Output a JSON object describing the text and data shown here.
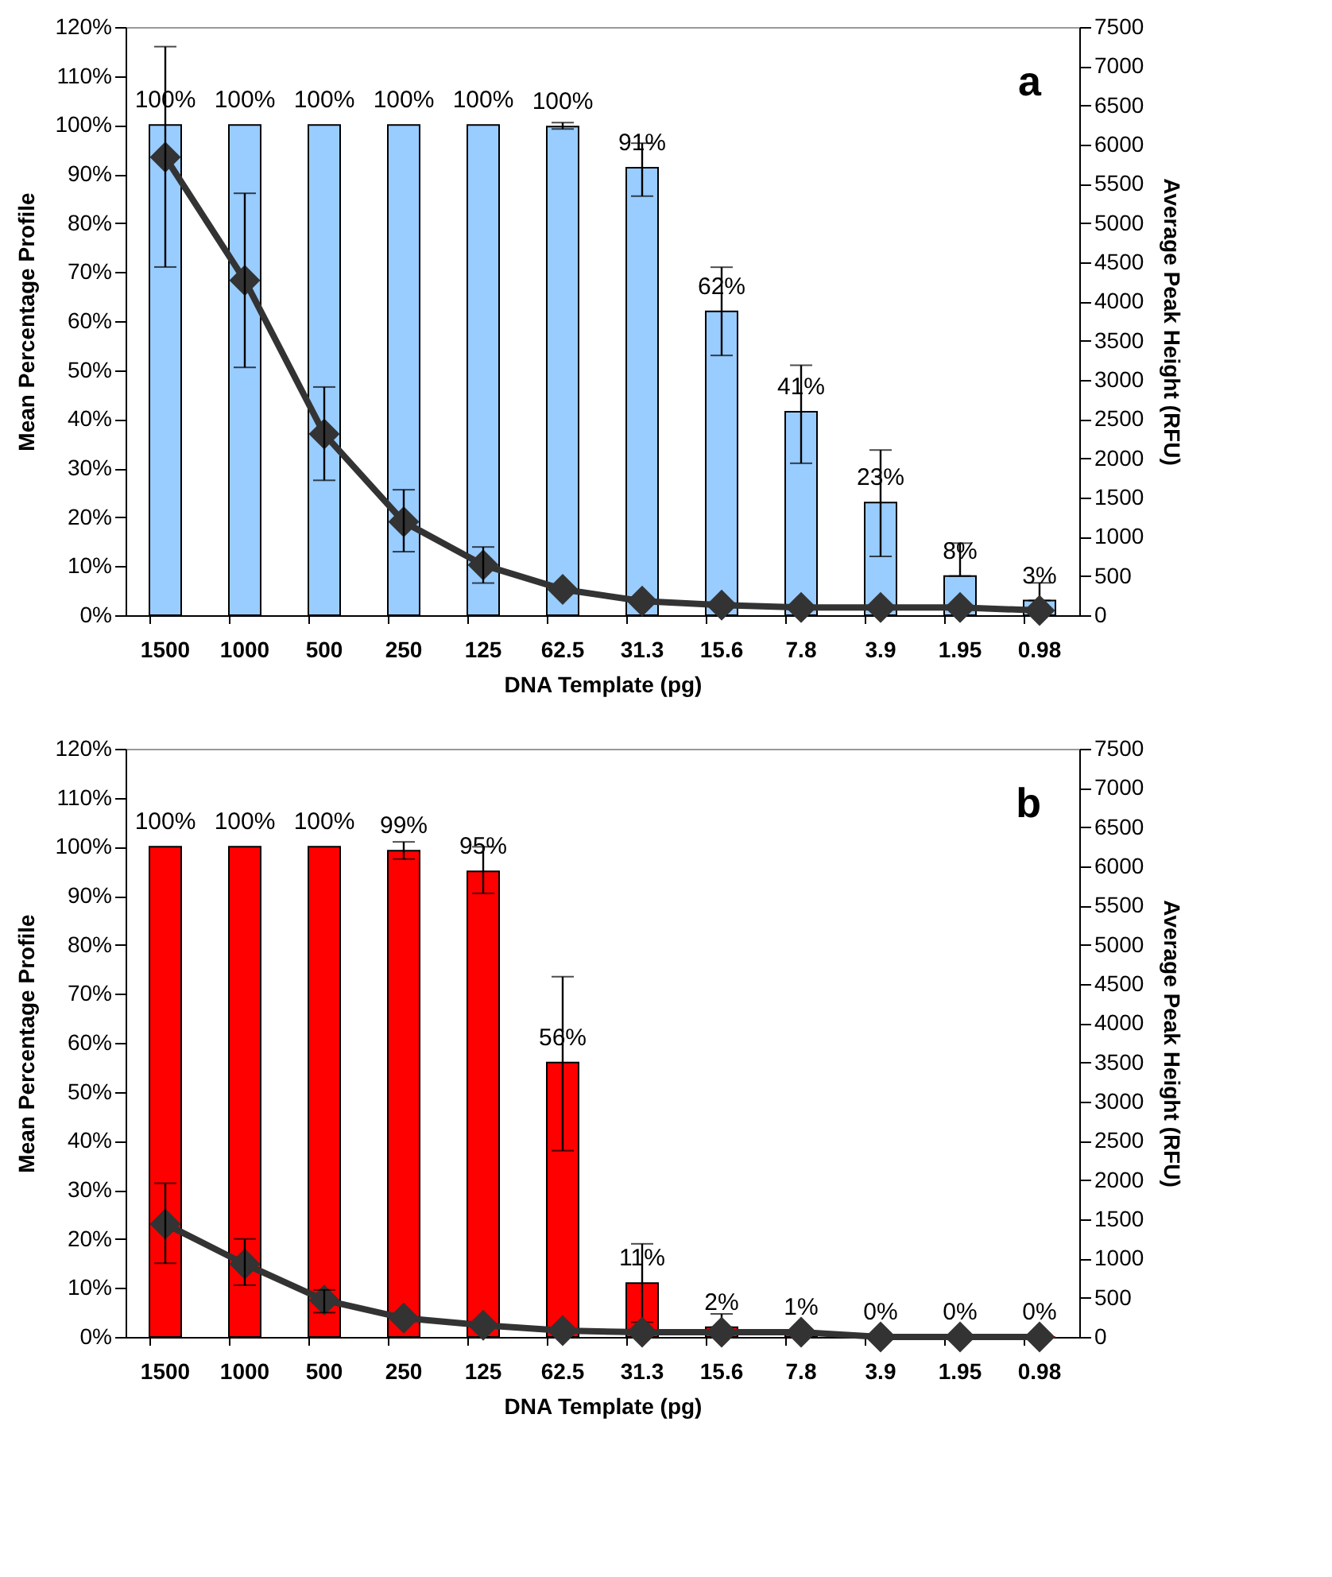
{
  "chart_data": [
    {
      "type": "bar",
      "xlabel": "DNA Template (pg)",
      "ylabel": "Mean Percentage Profile",
      "y2label": "Average Peak Height (RFU)",
      "annotations": [
        "a"
      ],
      "categories": [
        "1500",
        "1000",
        "500",
        "250",
        "125",
        "62.5",
        "31.3",
        "15.6",
        "7.8",
        "3.9",
        "1.95",
        "0.98"
      ],
      "ylim": [
        0,
        120
      ],
      "yticks": [
        {
          "value": 0,
          "label": "0%"
        },
        {
          "value": 10,
          "label": "10%"
        },
        {
          "value": 20,
          "label": "20%"
        },
        {
          "value": 30,
          "label": "30%"
        },
        {
          "value": 40,
          "label": "40%"
        },
        {
          "value": 50,
          "label": "50%"
        },
        {
          "value": 60,
          "label": "60%"
        },
        {
          "value": 70,
          "label": "70%"
        },
        {
          "value": 80,
          "label": "80%"
        },
        {
          "value": 90,
          "label": "90%"
        },
        {
          "value": 100,
          "label": "100%"
        },
        {
          "value": 110,
          "label": "110%"
        },
        {
          "value": 120,
          "label": "120%"
        }
      ],
      "y2lim": [
        0,
        7500
      ],
      "y2ticks": [
        0,
        500,
        1000,
        1500,
        2000,
        2500,
        3000,
        3500,
        4000,
        4500,
        5000,
        5500,
        6000,
        6500,
        7000,
        7500
      ],
      "marker": "diamond",
      "series": [
        {
          "type": "bar",
          "color": "#99ccff",
          "values": [
            100,
            100,
            100,
            100,
            100,
            99.7,
            91.3,
            62,
            41.5,
            23,
            8,
            3
          ],
          "value_labels": [
            "100%",
            "100%",
            "100%",
            "100%",
            "100%",
            "100%",
            "91%",
            "62%",
            "41%",
            "23%",
            "8%",
            "3%"
          ],
          "errors": [
            null,
            null,
            null,
            null,
            null,
            [
              99.2,
              100.5
            ],
            [
              85.5,
              96.3
            ],
            [
              53,
              71
            ],
            [
              31,
              51
            ],
            [
              12,
              33.7
            ],
            [
              8,
              14.7
            ],
            [
              3,
              6.6
            ]
          ]
        },
        {
          "type": "line",
          "axis": "y2",
          "color": "#333333",
          "values": [
            5840,
            4270,
            2310,
            1190,
            640,
            330,
            180,
            130,
            100,
            100,
            100,
            60
          ],
          "errors": [
            [
              4440,
              7250
            ],
            [
              3160,
              5380
            ],
            [
              1720,
              2910
            ],
            [
              810,
              1600
            ],
            [
              410,
              870
            ],
            null,
            null,
            null,
            null,
            null,
            null,
            null
          ]
        }
      ]
    },
    {
      "type": "bar",
      "xlabel": "DNA Template (pg)",
      "ylabel": "Mean Percentage Profile",
      "y2label": "Average Peak Height (RFU)",
      "annotations": [
        "b"
      ],
      "categories": [
        "1500",
        "1000",
        "500",
        "250",
        "125",
        "62.5",
        "31.3",
        "15.6",
        "7.8",
        "3.9",
        "1.95",
        "0.98"
      ],
      "ylim": [
        0,
        120
      ],
      "yticks": [
        {
          "value": 0,
          "label": "0%"
        },
        {
          "value": 10,
          "label": "10%"
        },
        {
          "value": 20,
          "label": "20%"
        },
        {
          "value": 30,
          "label": "30%"
        },
        {
          "value": 40,
          "label": "40%"
        },
        {
          "value": 50,
          "label": "50%"
        },
        {
          "value": 60,
          "label": "60%"
        },
        {
          "value": 70,
          "label": "70%"
        },
        {
          "value": 80,
          "label": "80%"
        },
        {
          "value": 90,
          "label": "90%"
        },
        {
          "value": 100,
          "label": "100%"
        },
        {
          "value": 110,
          "label": "110%"
        },
        {
          "value": 120,
          "label": "120%"
        }
      ],
      "y2lim": [
        0,
        7500
      ],
      "y2ticks": [
        0,
        500,
        1000,
        1500,
        2000,
        2500,
        3000,
        3500,
        4000,
        4500,
        5000,
        5500,
        6000,
        6500,
        7000,
        7500
      ],
      "marker": "diamond",
      "series": [
        {
          "type": "bar",
          "color": "#ff0000",
          "values": [
            100,
            100,
            100,
            99.2,
            95,
            56,
            11,
            2,
            1,
            0,
            0,
            0
          ],
          "value_labels": [
            "100%",
            "100%",
            "100%",
            "99%",
            "95%",
            "56%",
            "11%",
            "2%",
            "1%",
            "0%",
            "0%",
            "0%"
          ],
          "errors": [
            null,
            null,
            null,
            [
              97.5,
              101
            ],
            [
              90.5,
              100
            ],
            [
              38,
              73.5
            ],
            [
              3,
              19
            ],
            [
              2,
              4.7
            ],
            null,
            null,
            null,
            null
          ]
        },
        {
          "type": "line",
          "axis": "y2",
          "color": "#333333",
          "values": [
            1440,
            930,
            470,
            240,
            150,
            80,
            60,
            60,
            60,
            0,
            0,
            0
          ],
          "errors": [
            [
              940,
              1960
            ],
            [
              660,
              1250
            ],
            [
              310,
              600
            ],
            null,
            null,
            null,
            null,
            null,
            null,
            null,
            null,
            null
          ]
        }
      ]
    }
  ]
}
